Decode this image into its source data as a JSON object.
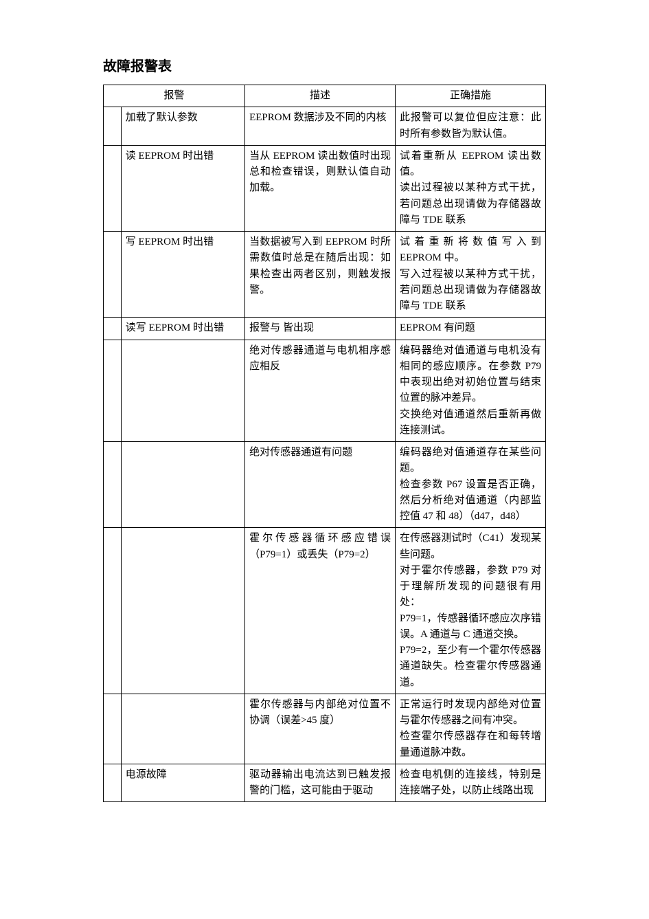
{
  "title": "故障报警表",
  "columns": [
    "",
    "报警",
    "描述",
    "正确措施"
  ],
  "rows": [
    {
      "code": "",
      "alarm": "加载了默认参数",
      "desc": "EEPROM 数据涉及不同的内核",
      "action": "此报警可以复位但应注意：此时所有参数皆为默认值。"
    },
    {
      "code": "",
      "alarm": "读 EEPROM 时出错",
      "desc": "当从 EEPROM 读出数值时出现总和检查错误，则默认值自动加载。",
      "action": "试着重新从 EEPROM 读出数值。\n读出过程被以某种方式干扰，若问题总出现请做为存储器故障与 TDE 联系"
    },
    {
      "code": "",
      "alarm": "写 EEPROM 时出错",
      "desc": "当数据被写入到 EEPROM 时所需数值时总是在随后出现：如果检查出两者区别，则触发报警。",
      "action": "试着重新将数值写入到 EEPROM 中。\n写入过程被以某种方式干扰，若问题总出现请做为存储器故障与 TDE 联系"
    },
    {
      "code": "",
      "alarm": "读写 EEPROM 时出错",
      "desc": "报警与 皆出现",
      "action": "EEPROM 有问题"
    },
    {
      "code": "",
      "alarm": "",
      "desc": "绝对传感器通道与电机相序感应相反",
      "action": "编码器绝对值通道与电机没有相同的感应顺序。在参数 P79 中表现出绝对初始位置与结束位置的脉冲差异。\n交换绝对值通道然后重新再做连接测试。"
    },
    {
      "code": "",
      "alarm": "",
      "desc": "绝对传感器通道有问题",
      "action": "编码器绝对值通道存在某些问题。\n检查参数 P67 设置是否正确，然后分析绝对值通道（内部监控值 47 和 48）（d47，d48）"
    },
    {
      "code": "",
      "alarm": "",
      "desc": "霍尔传感器循环感应错误（P79=1）或丢失（P79=2）",
      "action": "在传感器测试时（C41）发现某些问题。\n对于霍尔传感器，参数 P79 对于理解所发现的问题很有用处：\nP79=1，传感器循环感应次序错误。A 通道与 C 通道交换。\nP79=2，至少有一个霍尔传感器通道缺失。检查霍尔传感器通道。"
    },
    {
      "code": "",
      "alarm": "",
      "desc": "霍尔传感器与内部绝对位置不协调（误差>45 度）",
      "action": "正常运行时发现内部绝对位置与霍尔传感器之间有冲突。\n检查霍尔传感器存在和每转增量通道脉冲数。"
    },
    {
      "code": "",
      "alarm": "电源故障",
      "desc": "驱动器输出电流达到已触发报警的门槛，这可能由于驱动",
      "action": "检查电机侧的连接线，特别是连接端子处，以防止线路出现"
    }
  ]
}
